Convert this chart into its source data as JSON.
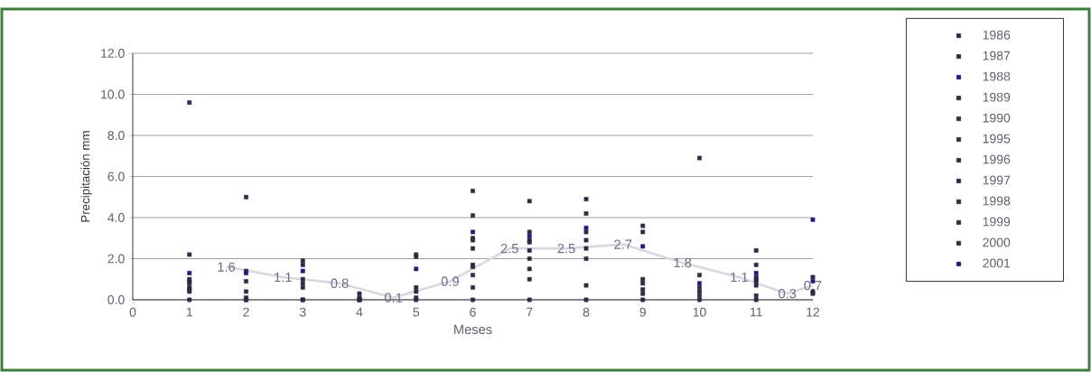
{
  "chart_data": {
    "type": "scatter",
    "xlabel": "Meses",
    "ylabel": "Precipitación mm",
    "x": [
      1,
      2,
      3,
      4,
      5,
      6,
      7,
      8,
      9,
      10,
      11,
      12
    ],
    "xlim": [
      0,
      12
    ],
    "ylim": [
      0,
      12
    ],
    "xticks": [
      0,
      1,
      2,
      3,
      4,
      5,
      6,
      7,
      8,
      9,
      10,
      11,
      12
    ],
    "yticks": [
      {
        "value": 0,
        "label": "0.0"
      },
      {
        "value": 2,
        "label": "2.0"
      },
      {
        "value": 4,
        "label": "4.0"
      },
      {
        "value": 6,
        "label": "6.0"
      },
      {
        "value": 8,
        "label": "8.0"
      },
      {
        "value": 10,
        "label": "10.0"
      },
      {
        "value": 12,
        "label": "12.0"
      }
    ],
    "grid": "y",
    "legend": "right",
    "marker": "square",
    "series": [
      {
        "name": "1986",
        "color": "#2b2b45",
        "values": [
          9.6,
          5.0,
          1.9,
          0.3,
          2.2,
          5.3,
          4.8,
          4.9,
          3.6,
          6.9,
          2.4,
          null
        ]
      },
      {
        "name": "1987",
        "color": "#2b2b45",
        "values": [
          2.2,
          1.4,
          1.7,
          0.1,
          2.1,
          4.1,
          3.3,
          4.2,
          3.3,
          1.2,
          1.7,
          1.1
        ]
      },
      {
        "name": "1988",
        "color": "#1c1c7a",
        "values": [
          1.3,
          1.3,
          1.4,
          0,
          1.5,
          3.3,
          3.1,
          3.5,
          2.6,
          0.8,
          1.3,
          0.9
        ]
      },
      {
        "name": "1989",
        "color": "#2b2b45",
        "values": [
          1.0,
          0.9,
          1.0,
          0,
          0.6,
          3.0,
          2.9,
          3.3,
          1.0,
          0.6,
          1.1,
          0.4
        ]
      },
      {
        "name": "1990",
        "color": "#2b2b45",
        "values": [
          0.9,
          0.4,
          0.8,
          0,
          0.4,
          2.9,
          2.8,
          2.9,
          0.8,
          0.4,
          1.0,
          0.3
        ]
      },
      {
        "name": "1995",
        "color": "#2b2b45",
        "values": [
          0.8,
          0.1,
          0.6,
          null,
          0.1,
          2.5,
          2.4,
          2.5,
          0.5,
          0.2,
          0.9,
          null
        ]
      },
      {
        "name": "1996",
        "color": "#2b2b45",
        "values": [
          0.6,
          0,
          0,
          null,
          0,
          1.7,
          2.0,
          2.0,
          0.3,
          0,
          0.7,
          null
        ]
      },
      {
        "name": "1997",
        "color": "#2b2b45",
        "values": [
          0.5,
          0,
          0,
          null,
          null,
          1.6,
          1.5,
          0.7,
          0,
          null,
          0.2,
          null
        ]
      },
      {
        "name": "1998",
        "color": "#2b2b45",
        "values": [
          0.4,
          null,
          null,
          null,
          null,
          1.2,
          1.0,
          0,
          null,
          null,
          0,
          null
        ]
      },
      {
        "name": "1999",
        "color": "#2b2b45",
        "values": [
          0,
          null,
          null,
          null,
          null,
          0.6,
          0,
          null,
          null,
          null,
          null,
          null
        ]
      },
      {
        "name": "2000",
        "color": "#2b2b45",
        "values": [
          null,
          null,
          null,
          null,
          null,
          0,
          null,
          null,
          null,
          null,
          null,
          null
        ]
      },
      {
        "name": "2001",
        "color": "#1c1c7a",
        "values": [
          null,
          null,
          null,
          null,
          null,
          null,
          null,
          null,
          null,
          null,
          null,
          3.9
        ]
      },
      {
        "type": "line",
        "color": "#d8d8e0",
        "marker": "none",
        "x": [
          1.65,
          2.65,
          3.65,
          4.6,
          5.6,
          6.65,
          7.65,
          8.65,
          9.7,
          10.7,
          11.55,
          12
        ],
        "values": [
          1.6,
          1.1,
          0.8,
          0.1,
          0.9,
          2.5,
          2.5,
          2.7,
          1.8,
          1.1,
          0.3,
          0.7
        ],
        "value_labels": [
          "1.6",
          "1.1",
          "0.8",
          "0.1",
          "0.9",
          "2.5",
          "2.5",
          "2.7",
          "1.8",
          "1.1",
          "0.3",
          "0.7"
        ]
      }
    ]
  }
}
